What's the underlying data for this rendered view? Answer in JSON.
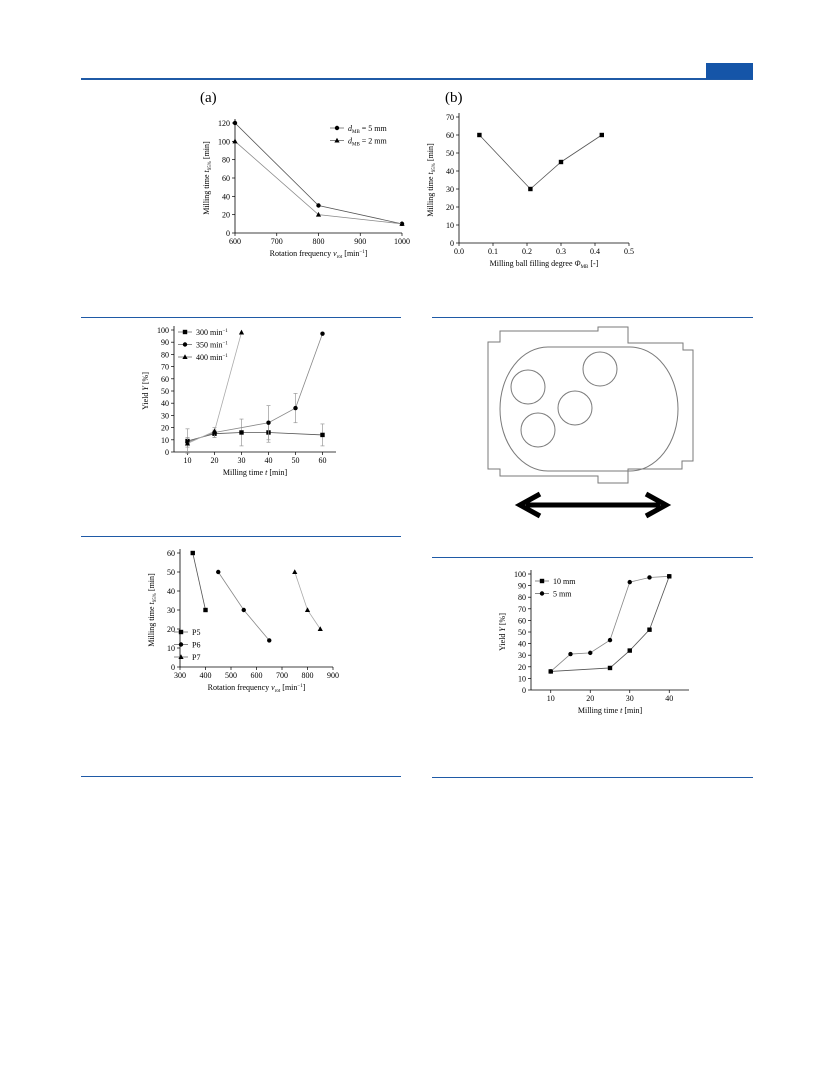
{
  "page": {
    "tab_color": "#1555a8",
    "rule_color": "#1f5aa6"
  },
  "panel_labels": {
    "a": "(a)",
    "b": "(b)"
  },
  "chart_data": [
    {
      "id": "chart-a",
      "type": "line",
      "xlabel": "Rotation frequency ",
      "xlabel_sym": "v",
      "xlabel_sub": "rot",
      "xlabel_tail": " [min",
      "xlabel_sup": "−1",
      "xlabel_end": "]",
      "ylabel": "Milling time ",
      "ylabel_sym": "t",
      "ylabel_sub": "95%",
      "ylabel_tail": " [min]",
      "xlim": [
        600,
        1000
      ],
      "ylim": [
        0,
        120
      ],
      "xticks": [
        600,
        700,
        800,
        900,
        1000
      ],
      "yticks": [
        0,
        20,
        40,
        60,
        80,
        100,
        120
      ],
      "series": [
        {
          "name": "d_MB = 5 mm",
          "label_pre": "d",
          "label_sub": "MB",
          "label_post": " = 5 mm",
          "marker": "circle",
          "x": [
            600,
            800,
            1000
          ],
          "y": [
            120,
            30,
            10
          ]
        },
        {
          "name": "d_MB = 2 mm",
          "label_pre": "d",
          "label_sub": "MB",
          "label_post": " = 2 mm",
          "marker": "triangle",
          "x": [
            600,
            800,
            1000
          ],
          "y": [
            100,
            20,
            10
          ]
        }
      ]
    },
    {
      "id": "chart-b",
      "type": "line",
      "xlabel": "Milling ball filling degree ",
      "xlabel_sym": "Φ",
      "xlabel_sub": "MB",
      "xlabel_tail": " [-]",
      "ylabel": "Milling time ",
      "ylabel_sym": "t",
      "ylabel_sub": "95%",
      "ylabel_tail": " [min]",
      "xlim": [
        0.0,
        0.5
      ],
      "ylim": [
        0,
        70
      ],
      "xticks": [
        0.0,
        0.1,
        0.2,
        0.3,
        0.4,
        0.5
      ],
      "xtick_labels": [
        "0.0",
        "0.1",
        "0.2",
        "0.3",
        "0.4",
        "0.5"
      ],
      "yticks": [
        0,
        10,
        20,
        30,
        40,
        50,
        60,
        70
      ],
      "series": [
        {
          "marker": "square",
          "x": [
            0.06,
            0.21,
            0.3,
            0.42
          ],
          "y": [
            60,
            30,
            45,
            60
          ]
        }
      ]
    },
    {
      "id": "chart-c",
      "type": "line",
      "xlabel": "Milling time ",
      "xlabel_sym": "t",
      "xlabel_tail": " [min]",
      "ylabel": "Yield ",
      "ylabel_sym": "Y",
      "ylabel_tail": " [%]",
      "xlim": [
        5,
        65
      ],
      "ylim": [
        0,
        100
      ],
      "xticks": [
        10,
        20,
        30,
        40,
        50,
        60
      ],
      "yticks": [
        0,
        10,
        20,
        30,
        40,
        50,
        60,
        70,
        80,
        90,
        100
      ],
      "series": [
        {
          "name": "300 min−1",
          "label_pre": "300 min",
          "label_sup": "−1",
          "marker": "square",
          "x": [
            10,
            20,
            30,
            40,
            60
          ],
          "y": [
            9,
            15,
            16,
            16,
            14
          ],
          "err": [
            10,
            3,
            11,
            8,
            9
          ]
        },
        {
          "name": "350 min−1",
          "label_pre": "350 min",
          "label_sup": "−1",
          "marker": "circle",
          "x": [
            10,
            20,
            40,
            50,
            60
          ],
          "y": [
            8,
            16,
            24,
            36,
            97
          ],
          "err": [
            4,
            4,
            14,
            12,
            0
          ]
        },
        {
          "name": "400 min−1",
          "label_pre": "400 min",
          "label_sup": "−1",
          "marker": "triangle",
          "x": [
            10,
            20,
            30
          ],
          "y": [
            7,
            17,
            98
          ],
          "err": [
            0,
            0,
            0
          ]
        }
      ]
    },
    {
      "id": "chart-d",
      "type": "line",
      "xlabel": "Rotation frequency ",
      "xlabel_sym": "v",
      "xlabel_sub": "rot",
      "xlabel_tail": " [min",
      "xlabel_sup": "−1",
      "xlabel_end": "]",
      "ylabel": "Milling time ",
      "ylabel_sym": "t",
      "ylabel_sub": "95%",
      "ylabel_tail": " [min]",
      "xlim": [
        300,
        900
      ],
      "ylim": [
        0,
        60
      ],
      "xticks": [
        300,
        400,
        500,
        600,
        700,
        800,
        900
      ],
      "yticks": [
        0,
        10,
        20,
        30,
        40,
        50,
        60
      ],
      "series": [
        {
          "name": "P5",
          "label_pre": "P5",
          "marker": "square",
          "x": [
            350,
            400
          ],
          "y": [
            60,
            30
          ]
        },
        {
          "name": "P6",
          "label_pre": "P6",
          "marker": "circle",
          "x": [
            450,
            550,
            650
          ],
          "y": [
            50,
            30,
            14
          ]
        },
        {
          "name": "P7",
          "label_pre": "P7",
          "marker": "triangle",
          "x": [
            750,
            800,
            850
          ],
          "y": [
            50,
            30,
            20
          ]
        }
      ]
    },
    {
      "id": "chart-e",
      "type": "line",
      "xlabel": "Milling time ",
      "xlabel_sym": "t",
      "xlabel_tail": " [min]",
      "ylabel": "Yield ",
      "ylabel_sym": "Y",
      "ylabel_tail": " [%]",
      "xlim": [
        5,
        45
      ],
      "ylim": [
        0,
        100
      ],
      "xticks": [
        10,
        20,
        30,
        40
      ],
      "yticks": [
        0,
        10,
        20,
        30,
        40,
        50,
        60,
        70,
        80,
        90,
        100
      ],
      "series": [
        {
          "name": "10 mm",
          "label_pre": "10 mm",
          "marker": "square",
          "x": [
            10,
            25,
            30,
            35,
            40
          ],
          "y": [
            16,
            19,
            34,
            52,
            98
          ]
        },
        {
          "name": "5 mm",
          "label_pre": "5 mm",
          "marker": "circle",
          "x": [
            10,
            15,
            20,
            25,
            30,
            35,
            40
          ],
          "y": [
            16,
            31,
            32,
            43,
            93,
            97,
            98
          ]
        }
      ]
    }
  ]
}
